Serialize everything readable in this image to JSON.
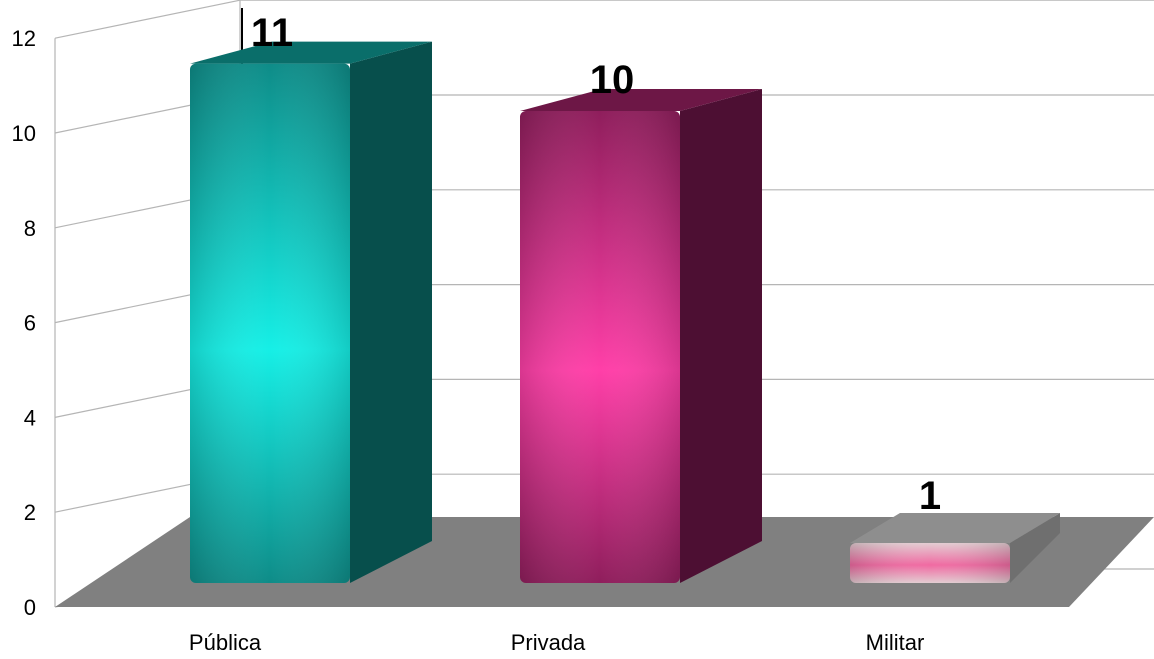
{
  "chart_data": {
    "type": "bar",
    "categories": [
      "Pública",
      "Privada",
      "Militar"
    ],
    "values": [
      11,
      10,
      1
    ],
    "data_labels": [
      "11",
      "10",
      "1"
    ],
    "ylim": [
      0,
      12
    ],
    "yticks": [
      "0",
      "2",
      "4",
      "6",
      "8",
      "10",
      "12"
    ],
    "grid": true,
    "legend": "none",
    "colors": {
      "Pública": {
        "front": "#0e8c88",
        "highlight": "#16efe6",
        "side": "#074f4c",
        "top": "#0a6e6a"
      },
      "Privada": {
        "front": "#8f1e5c",
        "highlight": "#ff3fa8",
        "side": "#4d0f33",
        "top": "#6d1746"
      },
      "Militar": {
        "front": "#e3cdd2",
        "highlight": "#f06aa2",
        "side": "#6f6f6f",
        "top": "#8e8e8e"
      }
    },
    "floor_color": "#808080"
  }
}
